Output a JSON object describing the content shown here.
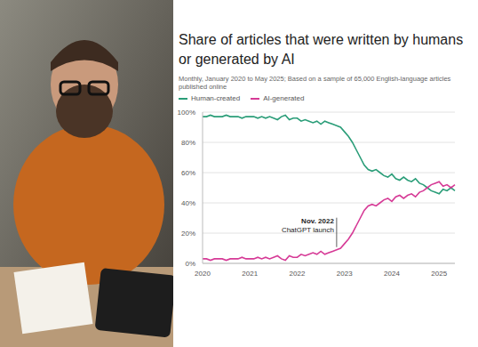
{
  "chart_data": {
    "type": "line",
    "title": "Share of articles that were written by humans or generated by AI",
    "subtitle": "Monthly, January 2020 to May 2025; Based on a sample of 65,000 English-language articles published online",
    "categories": [
      "2020",
      null,
      null,
      null,
      null,
      null,
      null,
      null,
      null,
      null,
      null,
      null,
      "2021",
      null,
      null,
      null,
      null,
      null,
      null,
      null,
      null,
      null,
      null,
      null,
      "2022",
      null,
      null,
      null,
      null,
      null,
      null,
      null,
      null,
      null,
      null,
      null,
      "2023",
      null,
      null,
      null,
      null,
      null,
      null,
      null,
      null,
      null,
      null,
      null,
      "2024",
      null,
      null,
      null,
      null,
      null,
      null,
      null,
      null,
      null,
      null,
      null,
      "2025",
      null,
      null,
      null,
      null
    ],
    "series": [
      {
        "name": "Human-created",
        "color": "#2a9d78",
        "values": [
          97,
          97,
          98,
          97,
          97,
          97,
          98,
          97,
          97,
          97,
          96,
          97,
          97,
          97,
          96,
          97,
          96,
          97,
          96,
          95,
          97,
          98,
          95,
          96,
          96,
          94,
          95,
          94,
          93,
          94,
          92,
          94,
          93,
          92,
          91,
          90,
          87,
          84,
          80,
          75,
          70,
          65,
          62,
          61,
          62,
          60,
          58,
          57,
          59,
          56,
          55,
          57,
          55,
          54,
          56,
          53,
          52,
          50,
          48,
          47,
          46,
          49,
          48,
          50,
          48
        ]
      },
      {
        "name": "AI-generated",
        "color": "#d63a96",
        "values": [
          3,
          3,
          2,
          3,
          3,
          3,
          2,
          3,
          3,
          3,
          4,
          3,
          3,
          3,
          4,
          3,
          4,
          3,
          4,
          5,
          3,
          2,
          5,
          4,
          4,
          6,
          5,
          6,
          7,
          6,
          8,
          6,
          7,
          8,
          9,
          10,
          13,
          16,
          20,
          25,
          30,
          35,
          38,
          39,
          38,
          40,
          42,
          43,
          41,
          44,
          45,
          43,
          45,
          46,
          44,
          47,
          48,
          50,
          52,
          53,
          54,
          51,
          52,
          50,
          52
        ]
      }
    ],
    "ylim": [
      0,
      100
    ],
    "yticks": [
      {
        "value": 0,
        "label": "0%"
      },
      {
        "value": 20,
        "label": "20%"
      },
      {
        "value": 40,
        "label": "40%"
      },
      {
        "value": 60,
        "label": "60%"
      },
      {
        "value": 80,
        "label": "80%"
      },
      {
        "value": 100,
        "label": "100%"
      }
    ],
    "grid": true,
    "legend": "top",
    "annotation": {
      "text": [
        "Nov. 2022",
        "ChatGPT launch"
      ]
    }
  }
}
